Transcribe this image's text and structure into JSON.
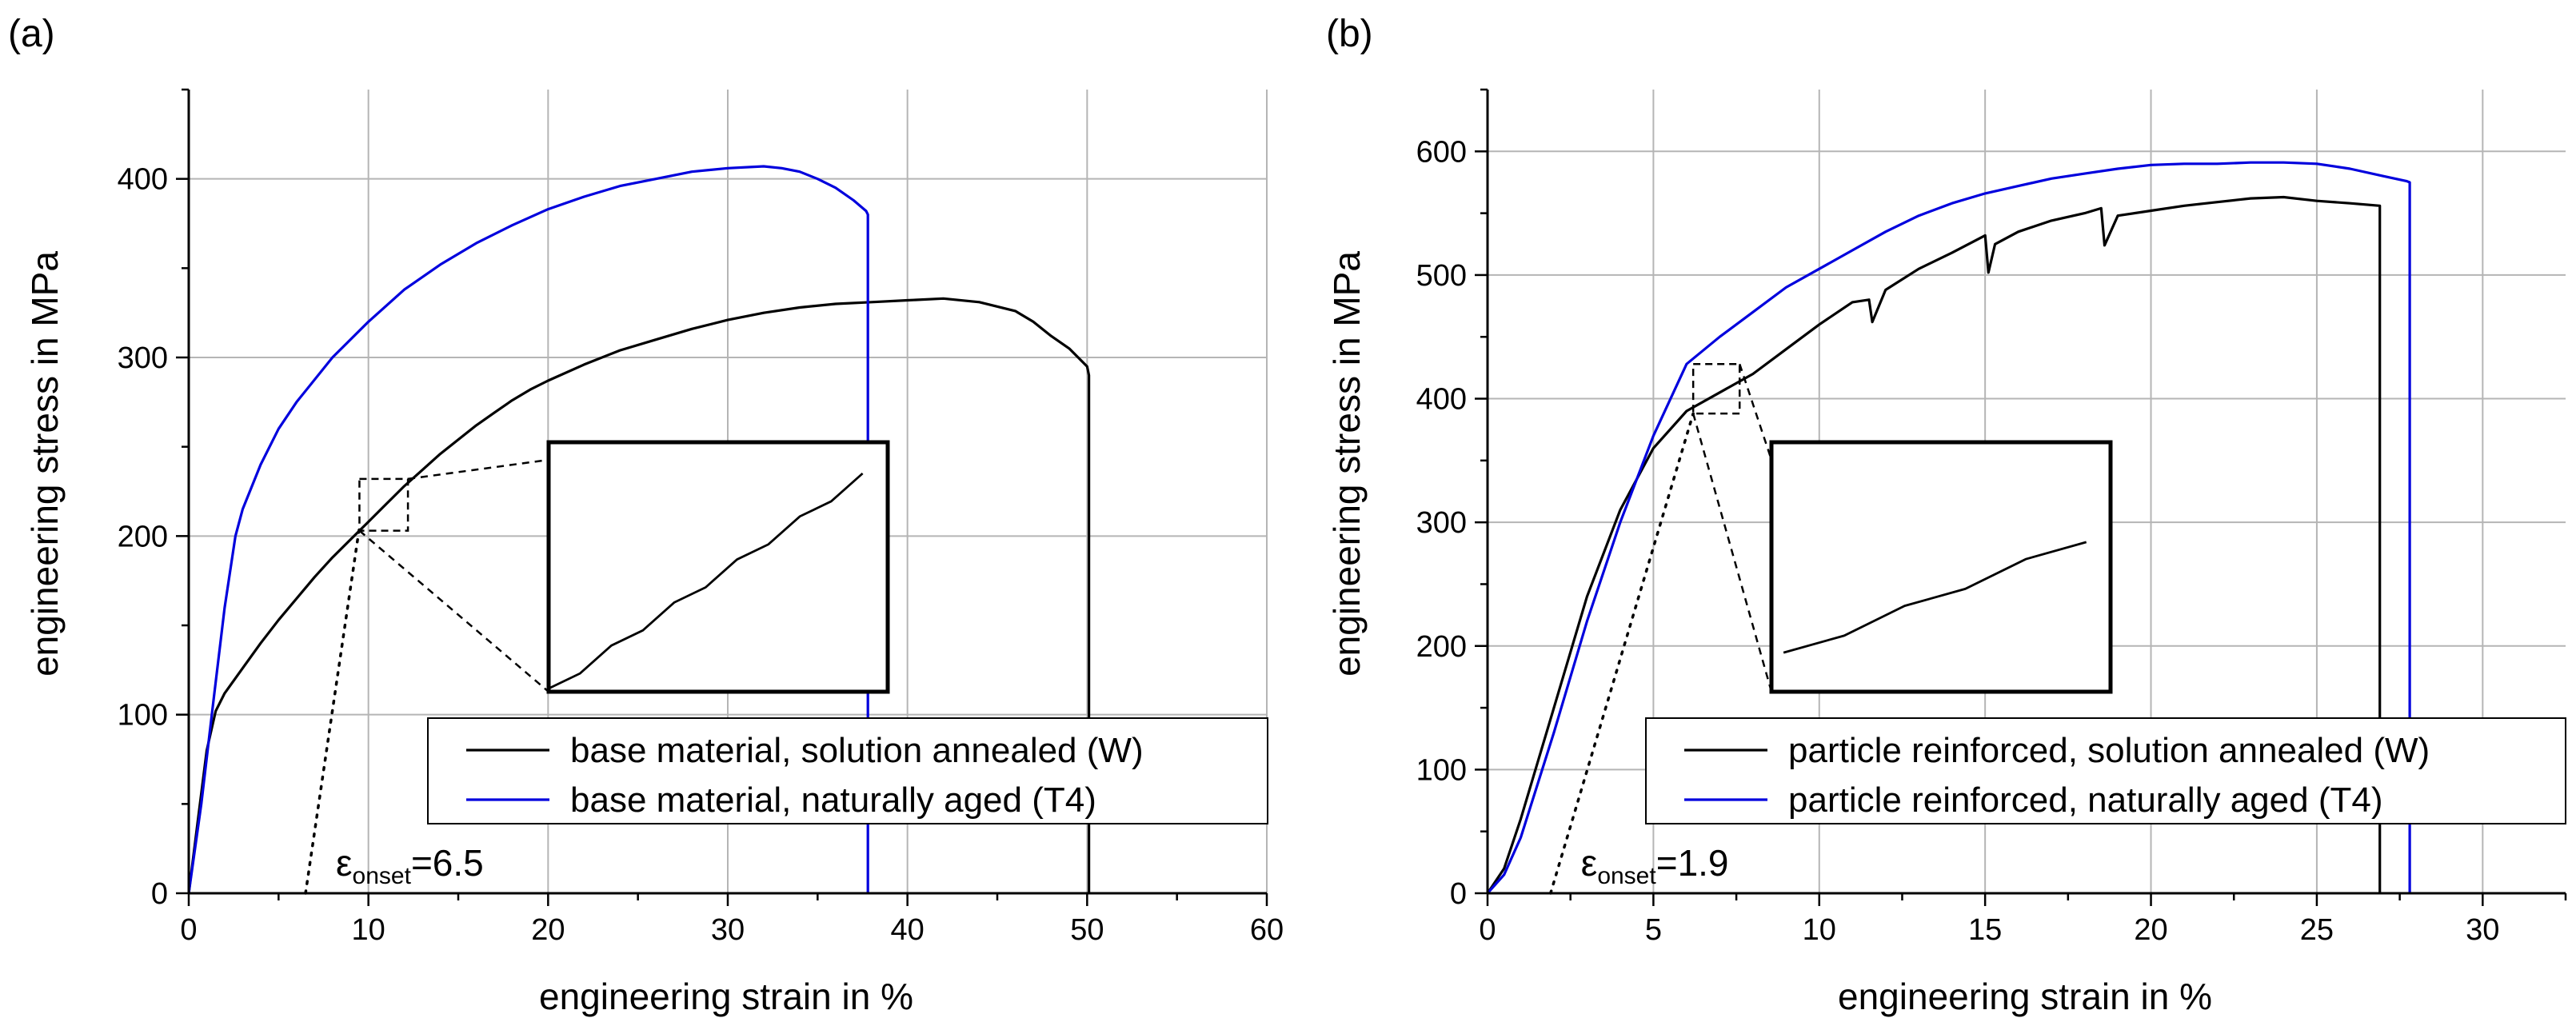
{
  "chart_data": [
    {
      "type": "line",
      "panel_label": "(a)",
      "xlabel": "engineering strain in %",
      "ylabel": "engineering stress in MPa",
      "xlim": [
        0,
        60
      ],
      "ylim": [
        0,
        450
      ],
      "xticks": [
        0,
        10,
        20,
        30,
        40,
        50,
        60
      ],
      "yticks": [
        0,
        100,
        200,
        300,
        400
      ],
      "xminor_step": 5,
      "yminor_step": 50,
      "grid": true,
      "legend_position": "lower-right",
      "series": [
        {
          "name": "base material, solution annealed (W)",
          "color": "#000000",
          "x": [
            0,
            0.5,
            1,
            1.5,
            2,
            3,
            4,
            5,
            6,
            7,
            8,
            9,
            10,
            11,
            12,
            13,
            14,
            15,
            16,
            17,
            18,
            19,
            20,
            22,
            24,
            26,
            28,
            30,
            32,
            34,
            36,
            38,
            40,
            42,
            44,
            46,
            47,
            48,
            49,
            50,
            50.1,
            50.1
          ],
          "y": [
            0,
            40,
            80,
            102,
            112,
            126,
            140,
            153,
            165,
            177,
            188,
            198,
            208,
            218,
            228,
            237,
            246,
            254,
            262,
            269,
            276,
            282,
            287,
            296,
            304,
            310,
            316,
            321,
            325,
            328,
            330,
            331,
            332,
            333,
            331,
            326,
            320,
            312,
            305,
            295,
            290,
            0
          ]
        },
        {
          "name": "base material, naturally aged (T4)",
          "color": "#0000dd",
          "x": [
            0,
            0.7,
            1.4,
            2,
            2.6,
            3,
            4,
            5,
            6,
            8,
            10,
            12,
            14,
            16,
            18,
            20,
            22,
            24,
            26,
            28,
            30,
            32,
            33,
            34,
            35,
            36,
            37,
            37.7,
            37.8,
            37.8
          ],
          "y": [
            0,
            50,
            110,
            160,
            200,
            215,
            240,
            260,
            275,
            300,
            320,
            338,
            352,
            364,
            374,
            383,
            390,
            396,
            400,
            404,
            406,
            407,
            406,
            404,
            400,
            395,
            388,
            382,
            380,
            0
          ]
        }
      ],
      "annotation": {
        "onset_symbol": "ε",
        "onset_subscript": "onset",
        "onset_value": "=6.5",
        "onset_strain": 6.5,
        "tangent_end": [
          9.5,
          205
        ],
        "zoom_box": {
          "x": [
            9.5,
            12.2
          ],
          "y": [
            203,
            232
          ]
        },
        "inset_range": {
          "x": [
            20,
            39
          ],
          "y": [
            112,
            253
          ]
        }
      }
    },
    {
      "type": "line",
      "panel_label": "(b)",
      "xlabel": "engineering strain in %",
      "ylabel": "engineering stress in MPa",
      "xlim": [
        0,
        32.5
      ],
      "ylim": [
        0,
        650
      ],
      "xticks": [
        0,
        5,
        10,
        15,
        20,
        25,
        30
      ],
      "yticks": [
        0,
        100,
        200,
        300,
        400,
        500,
        600
      ],
      "xminor_step": 2.5,
      "yminor_step": 50,
      "grid": true,
      "legend_position": "lower-right",
      "series": [
        {
          "name": "particle reinforced, solution annealed (W)",
          "color": "#000000",
          "x": [
            0,
            0.5,
            1,
            2,
            3,
            4,
            5,
            6,
            7,
            8,
            9,
            10,
            11,
            11.5,
            11.6,
            12,
            13,
            14,
            15,
            15.1,
            15.3,
            16,
            17,
            18,
            18.5,
            18.6,
            19,
            20,
            21,
            22,
            23,
            24,
            25,
            26,
            26.9,
            26.9
          ],
          "y": [
            0,
            20,
            60,
            150,
            240,
            310,
            360,
            390,
            405,
            420,
            440,
            460,
            478,
            480,
            462,
            488,
            505,
            518,
            532,
            502,
            525,
            535,
            544,
            550,
            554,
            524,
            548,
            552,
            556,
            559,
            562,
            563,
            560,
            558,
            556,
            0
          ]
        },
        {
          "name": "particle reinforced, naturally aged (T4)",
          "color": "#0000dd",
          "x": [
            0,
            0.5,
            1,
            2,
            3,
            4,
            5,
            6,
            7,
            8,
            9,
            10,
            11,
            12,
            13,
            14,
            15,
            16,
            17,
            18,
            19,
            20,
            21,
            22,
            23,
            24,
            25,
            26,
            27,
            27.7,
            27.8,
            27.8
          ],
          "y": [
            0,
            15,
            45,
            130,
            220,
            300,
            370,
            428,
            450,
            470,
            490,
            505,
            520,
            535,
            548,
            558,
            566,
            572,
            578,
            582,
            586,
            589,
            590,
            590,
            591,
            591,
            590,
            586,
            580,
            576,
            575,
            0
          ]
        }
      ],
      "annotation": {
        "onset_symbol": "ε",
        "onset_subscript": "onset",
        "onset_value": "=1.9",
        "onset_strain": 1.9,
        "tangent_end": [
          6.2,
          388
        ],
        "zoom_box": {
          "x": [
            6.2,
            7.6
          ],
          "y": [
            388,
            428
          ]
        },
        "inset_range": {
          "x": [
            8.5,
            18.8
          ],
          "y": [
            162,
            366
          ]
        }
      }
    }
  ]
}
